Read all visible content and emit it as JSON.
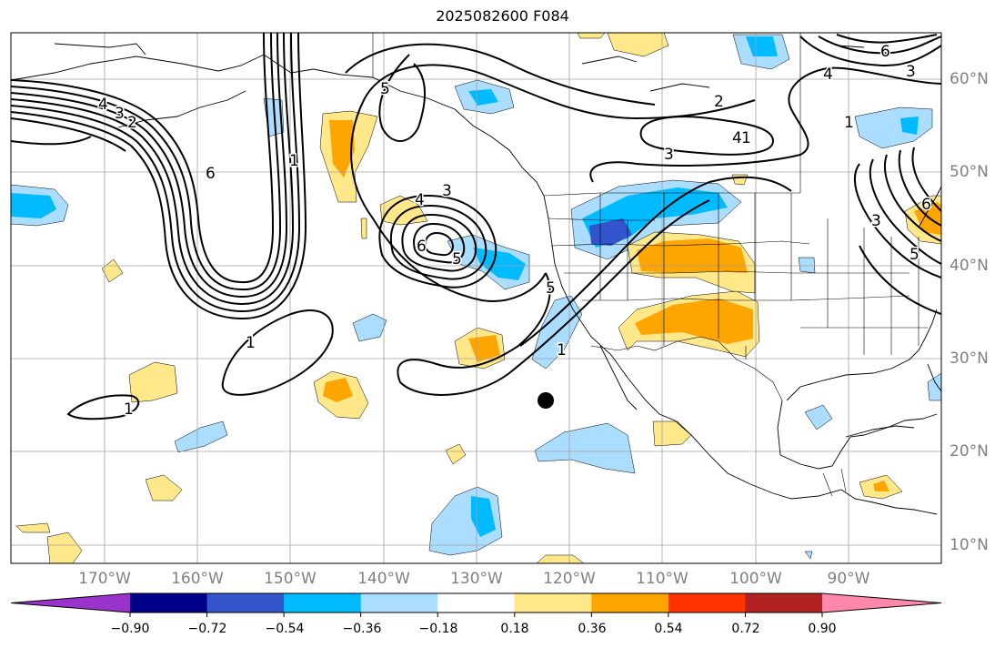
{
  "title": "2025082600 F084",
  "lat_labels": [
    "60°N",
    "50°N",
    "40°N",
    "30°N",
    "20°N",
    "10°N"
  ],
  "lon_labels": [
    "170°W",
    "160°W",
    "150°W",
    "140°W",
    "130°W",
    "120°W",
    "110°W",
    "100°W",
    "90°W"
  ],
  "colorbar": {
    "ticks": [
      "−0.90",
      "−0.72",
      "−0.54",
      "−0.36",
      "−0.18",
      "0.18",
      "0.36",
      "0.54",
      "0.72",
      "0.90"
    ],
    "colors": [
      "#9933cc",
      "#000088",
      "#3355cc",
      "#00bbff",
      "#aaddff",
      "#ffffff",
      "#ffe88a",
      "#ffa500",
      "#ff3300",
      "#b22222",
      "#ff88aa"
    ]
  },
  "contour_labels": [
    "4",
    "3",
    "2",
    "6",
    "1",
    "5",
    "3",
    "4",
    "6",
    "5",
    "1",
    "1",
    "5",
    "2",
    "3",
    "4",
    "1",
    "6",
    "4",
    "3",
    "1",
    "5",
    "3",
    "6",
    "1"
  ],
  "marker": {
    "name": "point-marker"
  }
}
